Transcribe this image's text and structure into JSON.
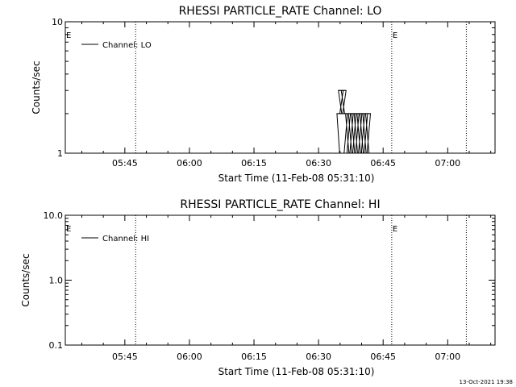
{
  "chart_data": [
    {
      "type": "line",
      "title": "RHESSI PARTICLE_RATE Channel: LO",
      "xlabel": "Start Time (11-Feb-08 05:31:10)",
      "ylabel": "Counts/sec",
      "yscale": "log",
      "ylim": [
        1,
        10
      ],
      "y_ticks": [
        {
          "v": 1,
          "label": "1"
        },
        {
          "v": 10,
          "label": "10"
        }
      ],
      "xlim": [
        "05:31:10",
        "07:11:00"
      ],
      "x_ticks": [
        {
          "t": "05:45",
          "label": "05:45"
        },
        {
          "t": "06:00",
          "label": "06:00"
        },
        {
          "t": "06:15",
          "label": "06:15"
        },
        {
          "t": "06:30",
          "label": "06:30"
        },
        {
          "t": "06:45",
          "label": "06:45"
        },
        {
          "t": "07:00",
          "label": "07:00"
        }
      ],
      "event_lines": [
        {
          "t": "05:31:10",
          "label": "E"
        },
        {
          "t": "05:47:30",
          "label": ""
        },
        {
          "t": "06:47:00",
          "label": "E"
        },
        {
          "t": "07:04:20",
          "label": ""
        }
      ],
      "legend": "Channel: LO",
      "series": [
        {
          "name": "Channel: LO",
          "x": [
            "06:34:20",
            "06:34:50",
            "06:35:10",
            "06:35:30",
            "06:35:50",
            "06:36:10",
            "06:36:30",
            "06:36:50",
            "06:37:10",
            "06:37:30",
            "06:37:50",
            "06:38:10",
            "06:38:30",
            "06:38:50",
            "06:39:10",
            "06:39:30",
            "06:39:50",
            "06:40:10",
            "06:40:30",
            "06:40:50",
            "06:41:10",
            "06:41:30",
            "06:41:50"
          ],
          "values": [
            1,
            2,
            3,
            2,
            3,
            2,
            1,
            2,
            1,
            2,
            1,
            2,
            1,
            2,
            1,
            2,
            1,
            2,
            1,
            2,
            1,
            2,
            1
          ]
        }
      ]
    },
    {
      "type": "line",
      "title": "RHESSI PARTICLE_RATE Channel: HI",
      "xlabel": "Start Time (11-Feb-08 05:31:10)",
      "ylabel": "Counts/sec",
      "yscale": "log",
      "ylim": [
        0.1,
        10
      ],
      "y_ticks": [
        {
          "v": 0.1,
          "label": "0.1"
        },
        {
          "v": 1,
          "label": "1.0"
        },
        {
          "v": 10,
          "label": "10.0"
        }
      ],
      "xlim": [
        "05:31:10",
        "07:11:00"
      ],
      "x_ticks": [
        {
          "t": "05:45",
          "label": "05:45"
        },
        {
          "t": "06:00",
          "label": "06:00"
        },
        {
          "t": "06:15",
          "label": "06:15"
        },
        {
          "t": "06:30",
          "label": "06:30"
        },
        {
          "t": "06:45",
          "label": "06:45"
        },
        {
          "t": "07:00",
          "label": "07:00"
        }
      ],
      "event_lines": [
        {
          "t": "05:31:10",
          "label": "E"
        },
        {
          "t": "05:47:30",
          "label": ""
        },
        {
          "t": "06:47:00",
          "label": "E"
        },
        {
          "t": "07:04:20",
          "label": ""
        }
      ],
      "legend": "Channel: HI",
      "series": [
        {
          "name": "Channel: HI",
          "x": [],
          "values": []
        }
      ]
    }
  ],
  "footer": {
    "timestamp": "13-Oct-2021 19:38"
  }
}
